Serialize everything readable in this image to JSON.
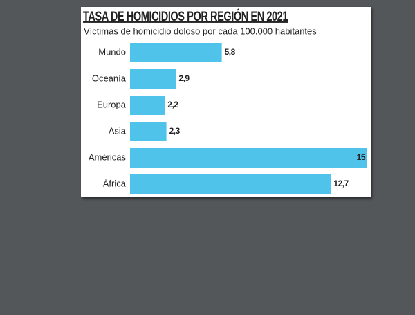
{
  "chart_data": {
    "type": "bar",
    "orientation": "horizontal",
    "title": "TASA DE HOMICIDIOS POR REGIÓN EN 2021",
    "subtitle": "Víctimas de homicidio doloso por cada 100.000 habitantes",
    "categories": [
      "Mundo",
      "Oceanía",
      "Europa",
      "Asia",
      "Américas",
      "África"
    ],
    "values": [
      5.8,
      2.9,
      2.2,
      2.3,
      15,
      12.7
    ],
    "value_labels": [
      "5,8",
      "2,9",
      "2,2",
      "2,3",
      "15",
      "12,7"
    ],
    "color": "#4fc3ea"
  }
}
